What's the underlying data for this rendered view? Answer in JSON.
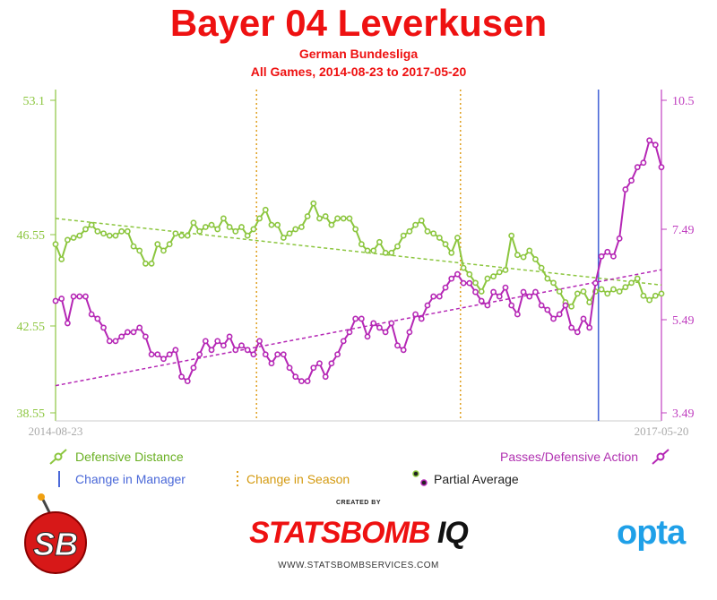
{
  "header": {
    "title": "Bayer 04 Leverkusen",
    "subtitle": "German Bundesliga",
    "range": "All Games, 2014-08-23 to 2017-05-20"
  },
  "axes": {
    "left_ticks": [
      "53.1",
      "46.55",
      "42.55",
      "38.55"
    ],
    "right_ticks": [
      "10.5",
      "7.49",
      "5.49",
      "3.49"
    ],
    "x_start": "2014-08-23",
    "x_end": "2017-05-20"
  },
  "legend": {
    "defensive_distance": "Defensive Distance",
    "passes_per_defensive_action": "Passes/Defensive Action",
    "change_manager": "Change in Manager",
    "change_season": "Change in Season",
    "partial_average": "Partial Average"
  },
  "footer": {
    "created_by": "CREATED BY",
    "brand_main": "STATSBOMB",
    "brand_iq": "IQ",
    "url": "WWW.STATSBOMBSERVICES.COM",
    "opta": "opta",
    "sb_logo": "SB"
  },
  "colors": {
    "green": "#8cc63f",
    "magenta": "#b527b5",
    "blue": "#4a68d8",
    "orange": "#e0a020",
    "red": "#ee1111"
  },
  "chart_data": {
    "type": "line",
    "x_range": [
      "2014-08-23",
      "2017-05-20"
    ],
    "games": 102,
    "season_changes_after_game": [
      34,
      68
    ],
    "manager_change_after_game": 91,
    "series": [
      {
        "name": "Defensive Distance",
        "axis": "left",
        "ylim": [
          38.55,
          53.1
        ],
        "values": [
          46.4,
          45.7,
          46.6,
          46.7,
          46.8,
          47.1,
          47.3,
          47.0,
          46.9,
          46.8,
          46.8,
          47.0,
          47.0,
          46.3,
          46.1,
          45.5,
          45.5,
          46.4,
          46.1,
          46.4,
          46.9,
          46.8,
          46.8,
          47.4,
          47.0,
          47.2,
          47.3,
          47.1,
          47.6,
          47.2,
          47.0,
          47.2,
          46.8,
          47.1,
          47.6,
          48.0,
          47.3,
          47.3,
          46.7,
          46.9,
          47.1,
          47.2,
          47.7,
          48.3,
          47.6,
          47.7,
          47.3,
          47.6,
          47.6,
          47.6,
          47.1,
          46.4,
          46.1,
          46.1,
          46.5,
          46.0,
          46.0,
          46.3,
          46.8,
          47.0,
          47.3,
          47.5,
          47.0,
          46.9,
          46.7,
          46.4,
          46.0,
          46.7,
          45.3,
          45.0,
          44.6,
          44.2,
          44.8,
          44.9,
          45.1,
          45.2,
          46.8,
          45.9,
          45.8,
          46.1,
          45.7,
          45.3,
          44.8,
          44.6,
          44.2,
          43.7,
          43.5,
          44.1,
          44.2,
          43.7,
          44.2,
          44.3,
          44.1,
          44.3,
          44.2,
          44.4,
          44.6,
          44.8,
          44.0,
          43.8,
          44.0,
          44.1
        ],
        "trend": [
          47.6,
          44.5
        ]
      },
      {
        "name": "Passes/Defensive Action",
        "axis": "right",
        "ylim": [
          3.49,
          10.5
        ],
        "values": [
          6.0,
          6.05,
          5.5,
          6.1,
          6.1,
          6.1,
          5.7,
          5.6,
          5.4,
          5.1,
          5.1,
          5.2,
          5.3,
          5.3,
          5.4,
          5.2,
          4.8,
          4.8,
          4.7,
          4.8,
          4.9,
          4.3,
          4.2,
          4.5,
          4.8,
          5.1,
          4.9,
          5.1,
          5.0,
          5.2,
          4.9,
          5.0,
          4.9,
          4.8,
          5.1,
          4.8,
          4.6,
          4.8,
          4.8,
          4.5,
          4.3,
          4.2,
          4.2,
          4.5,
          4.6,
          4.3,
          4.6,
          4.8,
          5.1,
          5.3,
          5.6,
          5.6,
          5.2,
          5.5,
          5.4,
          5.3,
          5.5,
          5.0,
          4.9,
          5.3,
          5.7,
          5.6,
          5.9,
          6.1,
          6.1,
          6.3,
          6.5,
          6.6,
          6.4,
          6.4,
          6.2,
          6.0,
          5.9,
          6.2,
          6.1,
          6.3,
          5.9,
          5.7,
          6.2,
          6.1,
          6.2,
          5.9,
          5.8,
          5.6,
          5.7,
          5.9,
          5.4,
          5.3,
          5.6,
          5.4,
          6.4,
          7.0,
          7.1,
          7.0,
          7.4,
          8.5,
          8.7,
          9.0,
          9.1,
          9.6,
          9.5,
          9.0
        ],
        "trend": [
          4.1,
          6.7
        ]
      }
    ]
  }
}
